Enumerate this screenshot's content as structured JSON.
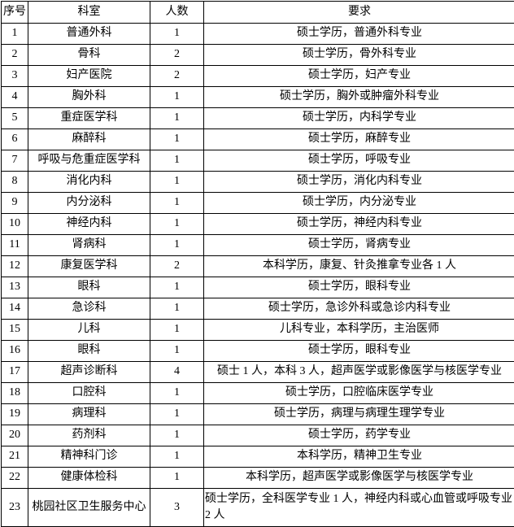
{
  "table": {
    "headers": [
      "序号",
      "科室",
      "人数",
      "要求"
    ],
    "rows": [
      {
        "no": "1",
        "dept": "普通外科",
        "count": "1",
        "req": "硕士学历，普通外科专业"
      },
      {
        "no": "2",
        "dept": "骨科",
        "count": "2",
        "req": "硕士学历，骨外科专业"
      },
      {
        "no": "3",
        "dept": "妇产医院",
        "count": "2",
        "req": "硕士学历，妇产专业"
      },
      {
        "no": "4",
        "dept": "胸外科",
        "count": "1",
        "req": "硕士学历，胸外或肿瘤外科专业"
      },
      {
        "no": "5",
        "dept": "重症医学科",
        "count": "1",
        "req": "硕士学历，内科学专业"
      },
      {
        "no": "6",
        "dept": "麻醉科",
        "count": "1",
        "req": "硕士学历，麻醉专业"
      },
      {
        "no": "7",
        "dept": "呼吸与危重症医学科",
        "count": "1",
        "req": "硕士学历，呼吸专业"
      },
      {
        "no": "8",
        "dept": "消化内科",
        "count": "1",
        "req": "硕士学历，消化内科专业"
      },
      {
        "no": "9",
        "dept": "内分泌科",
        "count": "1",
        "req": "硕士学历，内分泌专业"
      },
      {
        "no": "10",
        "dept": "神经内科",
        "count": "1",
        "req": "硕士学历，神经内科专业"
      },
      {
        "no": "11",
        "dept": "肾病科",
        "count": "1",
        "req": "硕士学历，肾病专业"
      },
      {
        "no": "12",
        "dept": "康复医学科",
        "count": "2",
        "req": "本科学历，康复、针灸推拿专业各 1 人"
      },
      {
        "no": "13",
        "dept": "眼科",
        "count": "1",
        "req": "硕士学历，眼科专业"
      },
      {
        "no": "14",
        "dept": "急诊科",
        "count": "1",
        "req": "硕士学历，急诊外科或急诊内科专业"
      },
      {
        "no": "15",
        "dept": "儿科",
        "count": "1",
        "req": "儿科专业，本科学历，主治医师"
      },
      {
        "no": "16",
        "dept": "眼科",
        "count": "1",
        "req": "硕士学历，眼科专业"
      },
      {
        "no": "17",
        "dept": "超声诊断科",
        "count": "4",
        "req": "硕士 1 人，本科 3 人，超声医学或影像医学与核医学专业"
      },
      {
        "no": "18",
        "dept": "口腔科",
        "count": "1",
        "req": "硕士学历，口腔临床医学专业"
      },
      {
        "no": "19",
        "dept": "病理科",
        "count": "1",
        "req": "硕士学历，病理与病理生理学专业"
      },
      {
        "no": "20",
        "dept": "药剂科",
        "count": "1",
        "req": "硕士学历，药学专业"
      },
      {
        "no": "21",
        "dept": "精神科门诊",
        "count": "1",
        "req": "本科学历，精神卫生专业"
      },
      {
        "no": "22",
        "dept": "健康体检科",
        "count": "1",
        "req": "本科学历，超声医学或影像医学与核医学专业"
      },
      {
        "no": "23",
        "dept": "桃园社区卫生服务中心",
        "count": "3",
        "req": "硕士学历，全科医学专业 1 人，神经内科或心血管或呼吸专业 2 人"
      }
    ]
  }
}
